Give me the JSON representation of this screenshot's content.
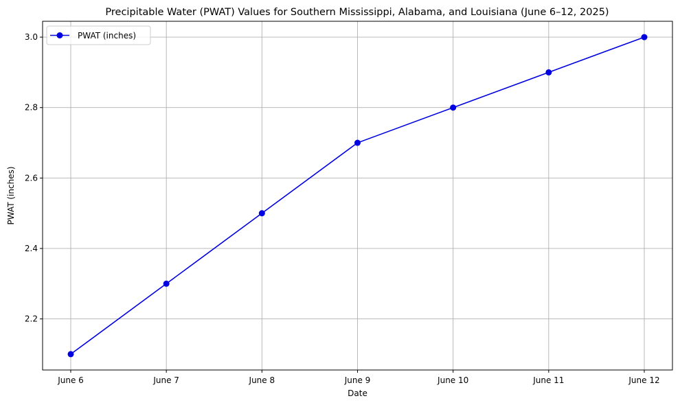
{
  "chart_data": {
    "type": "line",
    "title": "Precipitable Water (PWAT) Values for Southern Mississippi, Alabama, and Louisiana (June 6–12, 2025)",
    "xlabel": "Date",
    "ylabel": "PWAT (inches)",
    "categories": [
      "June 6",
      "June 7",
      "June 8",
      "June 9",
      "June 10",
      "June 11",
      "June 12"
    ],
    "series": [
      {
        "name": "PWAT (inches)",
        "values": [
          2.1,
          2.3,
          2.5,
          2.7,
          2.8,
          2.9,
          3.0
        ],
        "color": "#0000e0",
        "marker": "circle"
      }
    ],
    "ylim": [
      2.055,
      3.045
    ],
    "yticks": [
      2.2,
      2.4,
      2.6,
      2.8,
      3.0
    ],
    "ytick_labels": [
      "2.2",
      "2.4",
      "2.6",
      "2.8",
      "3.0"
    ],
    "grid": true,
    "grid_color": "#b0b0b0",
    "legend_position": "top-left"
  }
}
